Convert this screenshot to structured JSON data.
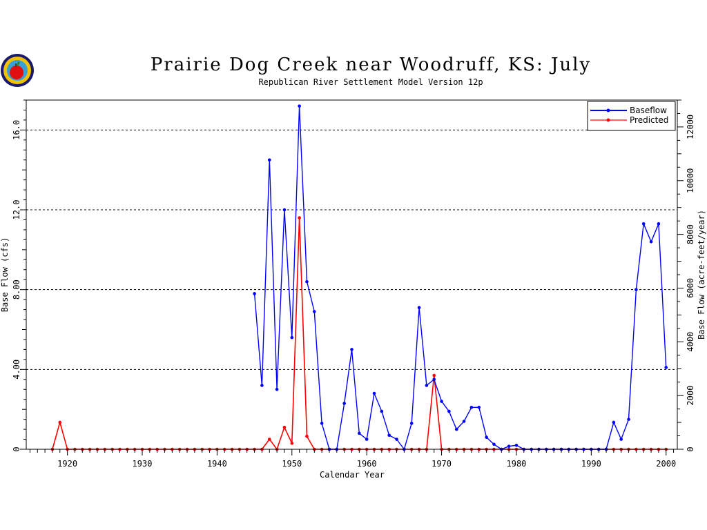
{
  "chart_data": {
    "type": "line",
    "title": "Prairie Dog Creek near Woodruff, KS: July",
    "subtitle": "Republican River Settlement Model Version 12p",
    "xlabel": "Calendar Year",
    "ylabel": "Base Flow (cfs)",
    "y2label": "Base Flow (acre-feet/year)",
    "xlim": [
      1914.5,
      2001.5
    ],
    "ylim": [
      0,
      17.5
    ],
    "y2lim": [
      0,
      13000
    ],
    "xticks": [
      1920,
      1930,
      1940,
      1950,
      1960,
      1970,
      1980,
      1990,
      2000
    ],
    "yticks": [
      0,
      4.0,
      8.0,
      12.0,
      16.0
    ],
    "ytick_labels": [
      "0",
      "4.00",
      "8.00",
      "12.0",
      "16.0"
    ],
    "y2ticks": [
      0,
      2000,
      4000,
      6000,
      8000,
      10000,
      12000
    ],
    "grid": "horizontal dashed",
    "legend_position": "top-right",
    "colors": {
      "baseflow": "#0000ff",
      "predicted": "#ff0000"
    },
    "series": [
      {
        "name": "Baseflow",
        "key": "baseflow",
        "x": [
          1945,
          1946,
          1947,
          1948,
          1949,
          1950,
          1951,
          1952,
          1953,
          1954,
          1955,
          1956,
          1957,
          1958,
          1959,
          1960,
          1961,
          1962,
          1963,
          1964,
          1965,
          1966,
          1967,
          1968,
          1969,
          1970,
          1971,
          1972,
          1973,
          1974,
          1975,
          1976,
          1977,
          1978,
          1979,
          1980,
          1981,
          1982,
          1983,
          1984,
          1985,
          1986,
          1987,
          1988,
          1989,
          1990,
          1991,
          1992,
          1993,
          1994,
          1995,
          1996,
          1997,
          1998,
          1999,
          2000
        ],
        "values": [
          7.8,
          3.2,
          14.5,
          3.0,
          12.0,
          5.6,
          17.2,
          8.4,
          6.9,
          1.3,
          0,
          0,
          2.3,
          5.0,
          0.8,
          0.5,
          2.8,
          1.9,
          0.7,
          0.5,
          0,
          1.3,
          7.1,
          3.2,
          3.5,
          2.4,
          1.9,
          1.0,
          1.4,
          2.1,
          2.1,
          0.6,
          0.25,
          0,
          0.15,
          0.2,
          0,
          0,
          0,
          0,
          0,
          0,
          0,
          0,
          0,
          0,
          0,
          0,
          1.35,
          0.5,
          1.5,
          8.0,
          11.3,
          10.4,
          11.3,
          4.1
        ]
      },
      {
        "name": "Predicted",
        "key": "predicted",
        "x": [
          1918,
          1919,
          1920,
          1921,
          1922,
          1923,
          1924,
          1925,
          1926,
          1927,
          1928,
          1929,
          1930,
          1931,
          1932,
          1933,
          1934,
          1935,
          1936,
          1937,
          1938,
          1939,
          1940,
          1941,
          1942,
          1943,
          1944,
          1945,
          1946,
          1947,
          1948,
          1949,
          1950,
          1951,
          1952,
          1953,
          1954,
          1955,
          1956,
          1957,
          1958,
          1959,
          1960,
          1961,
          1962,
          1963,
          1964,
          1965,
          1966,
          1967,
          1968,
          1969,
          1970,
          1971,
          1972,
          1973,
          1974,
          1975,
          1976,
          1977,
          1978,
          1979,
          1980,
          1981,
          1982,
          1983,
          1984,
          1985,
          1986,
          1987,
          1988,
          1989,
          1990,
          1991,
          1992,
          1993,
          1994,
          1995,
          1996,
          1997,
          1998,
          1999,
          2000
        ],
        "values": [
          0,
          1.35,
          0,
          0,
          0,
          0,
          0,
          0,
          0,
          0,
          0,
          0,
          0,
          0,
          0,
          0,
          0,
          0,
          0,
          0,
          0,
          0,
          0,
          0,
          0,
          0,
          0,
          0,
          0,
          0.5,
          0,
          1.1,
          0.3,
          11.6,
          0.65,
          0,
          0,
          0,
          0,
          0,
          0,
          0,
          0,
          0,
          0,
          0,
          0,
          0,
          0,
          0,
          0,
          3.7,
          0,
          0,
          0,
          0,
          0,
          0,
          0,
          0,
          0,
          0,
          0,
          0,
          0,
          0,
          0,
          0,
          0,
          0,
          0,
          0,
          0,
          0,
          0,
          0,
          0,
          0,
          0,
          0,
          0,
          0,
          0
        ]
      }
    ]
  }
}
